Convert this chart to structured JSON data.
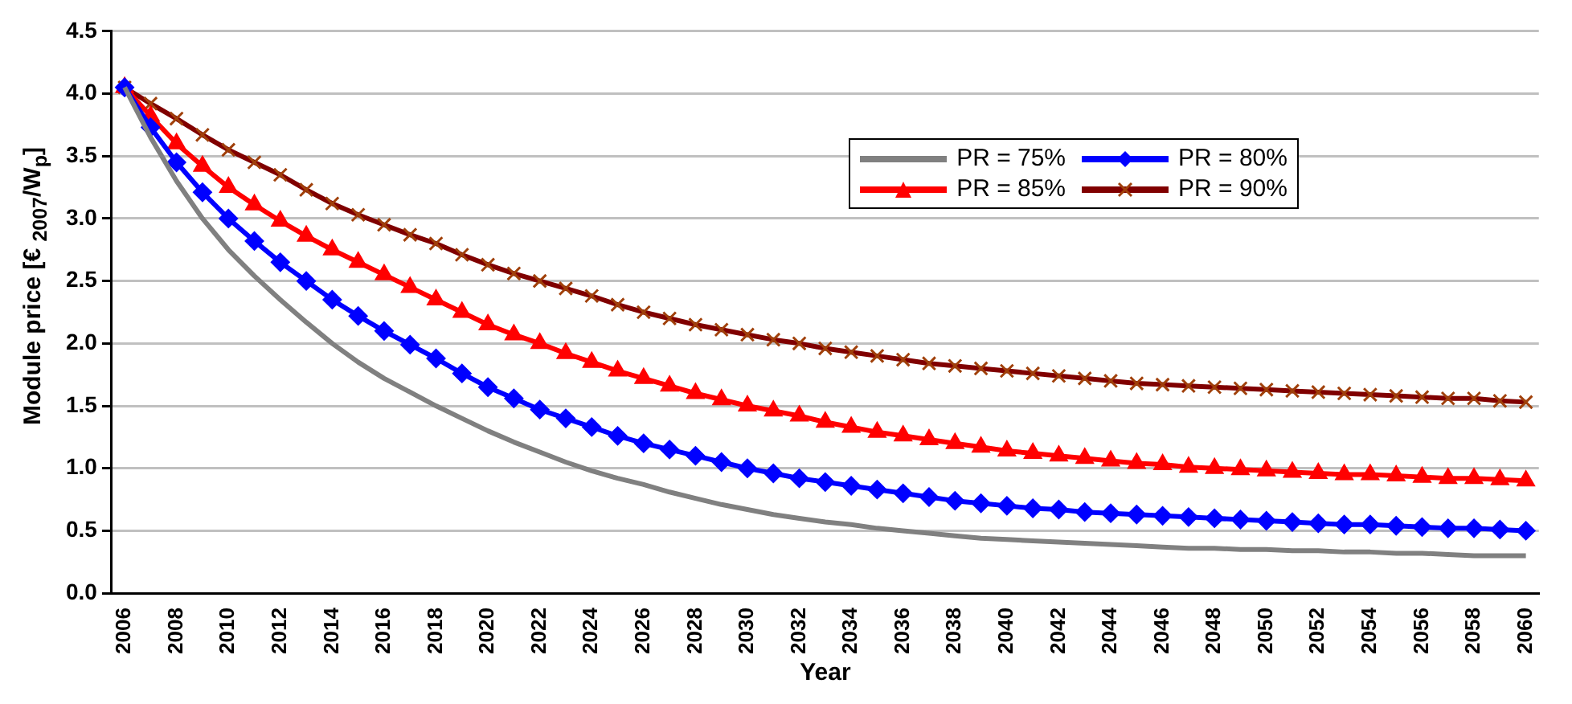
{
  "chart_data": {
    "type": "line",
    "xlabel": "Year",
    "ylabel": "Module price [€ $_{2007}$/W$_{p}$]",
    "categories": [
      "2006",
      null,
      "2008",
      null,
      "2010",
      null,
      "2012",
      null,
      "2014",
      null,
      "2016",
      null,
      "2018",
      null,
      "2020",
      null,
      "2022",
      null,
      "2024",
      null,
      "2026",
      null,
      "2028",
      null,
      "2030",
      null,
      "2032",
      null,
      "2034",
      null,
      "2036",
      null,
      "2038",
      null,
      "2040",
      null,
      "2042",
      null,
      "2044",
      null,
      "2046",
      null,
      "2048",
      null,
      "2050",
      null,
      "2052",
      null,
      "2054",
      null,
      "2056",
      null,
      "2058",
      null,
      "2060"
    ],
    "ylim": [
      0,
      4.5
    ],
    "yticks": [
      {
        "value": 0,
        "label": "0.0"
      },
      {
        "value": 0.5,
        "label": "0.5"
      },
      {
        "value": 1,
        "label": "1.0"
      },
      {
        "value": 1.5,
        "label": "1.5"
      },
      {
        "value": 2,
        "label": "2.0"
      },
      {
        "value": 2.5,
        "label": "2.5"
      },
      {
        "value": 3,
        "label": "3.0"
      },
      {
        "value": 3.5,
        "label": "3.5"
      },
      {
        "value": 4,
        "label": "4.0"
      },
      {
        "value": 4.5,
        "label": "4.5"
      }
    ],
    "grid": "y",
    "legend": "top right",
    "line_style": "solid",
    "series": [
      {
        "name": "PR = 75%",
        "color": "#808080",
        "marker": "none",
        "values": [
          4.05,
          3.65,
          3.3,
          3.0,
          2.75,
          2.54,
          2.35,
          2.17,
          2.0,
          1.85,
          1.72,
          1.61,
          1.5,
          1.4,
          1.3,
          1.21,
          1.13,
          1.05,
          0.98,
          0.92,
          0.87,
          0.81,
          0.76,
          0.71,
          0.67,
          0.63,
          0.6,
          0.57,
          0.55,
          0.52,
          0.5,
          0.48,
          0.46,
          0.44,
          0.43,
          0.42,
          0.41,
          0.4,
          0.39,
          0.38,
          0.37,
          0.36,
          0.36,
          0.35,
          0.35,
          0.34,
          0.34,
          0.33,
          0.33,
          0.32,
          0.32,
          0.31,
          0.3,
          0.3,
          0.3
        ]
      },
      {
        "name": "PR = 80%",
        "color": "#0000ff",
        "marker": "diamond",
        "values": [
          4.05,
          3.73,
          3.45,
          3.21,
          3.0,
          2.82,
          2.65,
          2.5,
          2.35,
          2.22,
          2.1,
          1.99,
          1.88,
          1.76,
          1.65,
          1.56,
          1.47,
          1.4,
          1.33,
          1.26,
          1.2,
          1.15,
          1.1,
          1.05,
          1.0,
          0.96,
          0.92,
          0.89,
          0.86,
          0.83,
          0.8,
          0.77,
          0.74,
          0.72,
          0.7,
          0.68,
          0.67,
          0.65,
          0.64,
          0.63,
          0.62,
          0.61,
          0.6,
          0.59,
          0.58,
          0.57,
          0.56,
          0.55,
          0.55,
          0.54,
          0.53,
          0.52,
          0.52,
          0.51,
          0.5
        ]
      },
      {
        "name": "PR = 85%",
        "color": "#ff0000",
        "marker": "triangle",
        "values": [
          4.05,
          3.82,
          3.6,
          3.42,
          3.25,
          3.11,
          2.98,
          2.86,
          2.75,
          2.65,
          2.55,
          2.45,
          2.35,
          2.25,
          2.15,
          2.07,
          2.0,
          1.92,
          1.85,
          1.78,
          1.72,
          1.66,
          1.6,
          1.55,
          1.5,
          1.46,
          1.42,
          1.37,
          1.33,
          1.29,
          1.26,
          1.23,
          1.2,
          1.17,
          1.14,
          1.12,
          1.1,
          1.08,
          1.06,
          1.04,
          1.03,
          1.01,
          1.0,
          0.99,
          0.98,
          0.97,
          0.96,
          0.95,
          0.95,
          0.94,
          0.93,
          0.92,
          0.92,
          0.91,
          0.9
        ]
      },
      {
        "name": "PR = 90%",
        "color": "#800000",
        "marker": "cross",
        "values": [
          4.05,
          3.92,
          3.8,
          3.67,
          3.55,
          3.45,
          3.35,
          3.23,
          3.12,
          3.03,
          2.95,
          2.87,
          2.8,
          2.71,
          2.63,
          2.56,
          2.5,
          2.44,
          2.38,
          2.31,
          2.25,
          2.2,
          2.15,
          2.11,
          2.07,
          2.03,
          2.0,
          1.96,
          1.93,
          1.9,
          1.87,
          1.84,
          1.82,
          1.8,
          1.78,
          1.76,
          1.74,
          1.72,
          1.7,
          1.68,
          1.67,
          1.66,
          1.65,
          1.64,
          1.63,
          1.62,
          1.61,
          1.6,
          1.59,
          1.58,
          1.57,
          1.56,
          1.56,
          1.54,
          1.53
        ]
      }
    ]
  }
}
